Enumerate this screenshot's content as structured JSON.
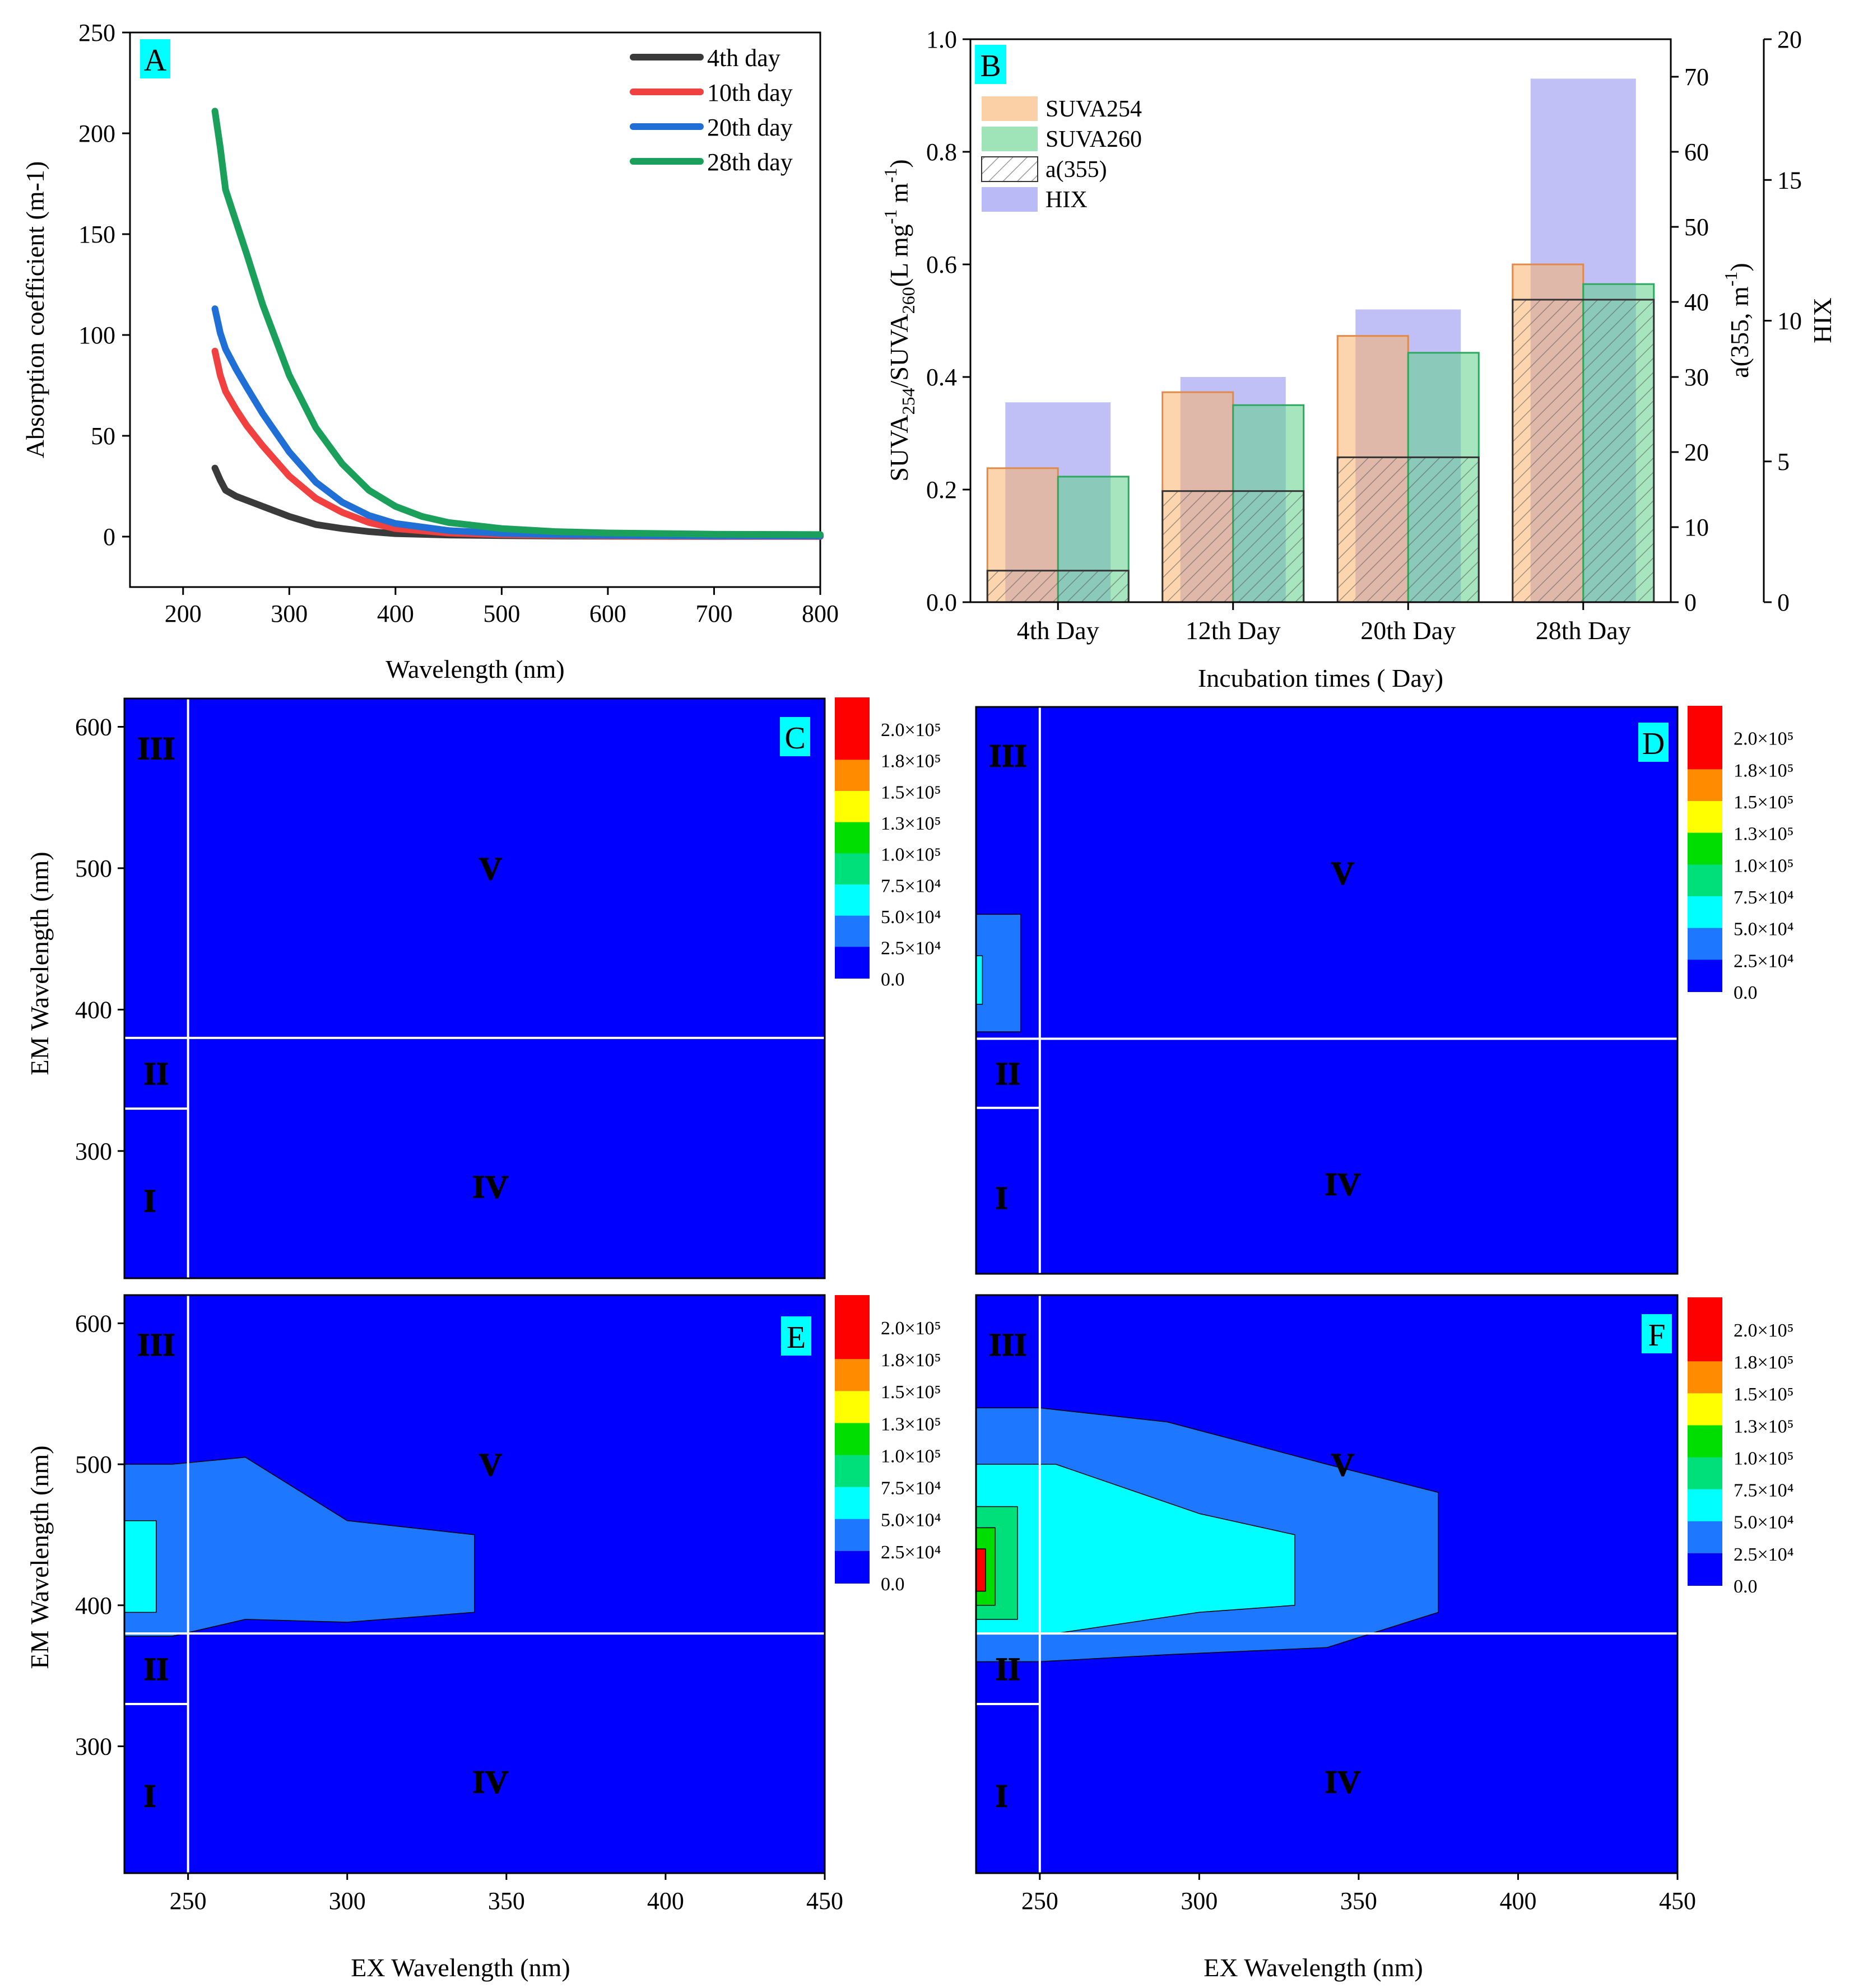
{
  "chart_data": [
    {
      "panel": "A",
      "type": "line",
      "xlabel": "Wavelength (nm)",
      "ylabel": "Absorption coefficient (m-1)",
      "xlim": [
        150,
        800
      ],
      "ylim": [
        -25,
        250
      ],
      "xticks": [
        200,
        300,
        400,
        500,
        600,
        700,
        800
      ],
      "yticks": [
        0,
        50,
        100,
        150,
        200,
        250
      ],
      "legend_position": "top-right",
      "series": [
        {
          "name": "4th day",
          "color": "#3a3a3a",
          "x": [
            230,
            235,
            240,
            250,
            260,
            275,
            300,
            325,
            350,
            375,
            400,
            450,
            500,
            550,
            600,
            700,
            800
          ],
          "y": [
            34,
            28,
            23,
            20,
            18,
            15,
            10,
            6,
            4,
            2.5,
            1.5,
            0.8,
            0.5,
            0.3,
            0.2,
            0.1,
            0.1
          ]
        },
        {
          "name": "10th day",
          "color": "#f04040",
          "x": [
            230,
            235,
            240,
            250,
            260,
            275,
            300,
            325,
            350,
            375,
            400,
            450,
            500,
            550,
            600,
            700,
            800
          ],
          "y": [
            92,
            80,
            72,
            63,
            55,
            45,
            30,
            19,
            12,
            7,
            4,
            1.8,
            1,
            0.6,
            0.4,
            0.2,
            0.1
          ]
        },
        {
          "name": "20th day",
          "color": "#1f6fd6",
          "x": [
            230,
            235,
            240,
            250,
            260,
            275,
            300,
            325,
            350,
            375,
            400,
            450,
            500,
            550,
            600,
            700,
            800
          ],
          "y": [
            113,
            101,
            93,
            83,
            74,
            61,
            42,
            27,
            17,
            10.5,
            6.5,
            3,
            1.6,
            1,
            0.7,
            0.4,
            0.3
          ]
        },
        {
          "name": "28th day",
          "color": "#1aa05a",
          "x": [
            230,
            235,
            240,
            250,
            260,
            275,
            300,
            325,
            350,
            375,
            400,
            425,
            450,
            500,
            550,
            600,
            700,
            800
          ],
          "y": [
            211,
            193,
            172,
            156,
            140,
            115,
            80,
            54,
            36,
            23,
            15,
            10,
            7,
            4,
            2.5,
            1.8,
            1.2,
            1
          ]
        }
      ]
    },
    {
      "panel": "B",
      "type": "bar",
      "xlabel": "Incubation times ( Day)",
      "ylabel_left": {
        "pre": "SUVA",
        "sub1": "254",
        "mid": "/SUVA",
        "sub2": "260",
        "post": "(L mg",
        "sup1": "-1",
        "mid2": " m",
        "sup2": "-1",
        "end": ")"
      },
      "ylabel_right1": {
        "pre": "a(355, m",
        "sup": "-1",
        "post": ")"
      },
      "ylabel_right2": "HIX",
      "categories": [
        "4th Day",
        "12th Day",
        "20th Day",
        "28th Day"
      ],
      "ylim": [
        0,
        1.0
      ],
      "yticks": [
        "0.0",
        "0.2",
        "0.4",
        "0.6",
        "0.8",
        "1.0"
      ],
      "ylim_right1": [
        0,
        75
      ],
      "yticks_right1": [
        0,
        10,
        20,
        30,
        40,
        50,
        60,
        70
      ],
      "ylim_right2": [
        0,
        20
      ],
      "yticks_right2": [
        0,
        5,
        10,
        15,
        20
      ],
      "legend_position": "top-left",
      "series": [
        {
          "name": "SUVA254",
          "axis": "left",
          "color": "#f9b06b",
          "values": [
            0.238,
            0.373,
            0.473,
            0.6
          ]
        },
        {
          "name": "SUVA260",
          "axis": "left",
          "color": "#5fd08a",
          "values": [
            0.223,
            0.35,
            0.443,
            0.565
          ]
        },
        {
          "name": "a(355)",
          "axis": "right1",
          "color": "#888888",
          "pattern": "hatch",
          "values": [
            4.2,
            14.8,
            19.3,
            40.3
          ]
        },
        {
          "name": "HIX",
          "axis": "right2",
          "color": "#8c8cf0",
          "values": [
            7.1,
            8,
            10.4,
            18.6
          ]
        }
      ]
    },
    {
      "panel": "C",
      "type": "heatmap",
      "xlabel": "",
      "ylabel": "EM Wavelength (nm)",
      "xlim": [
        230,
        450
      ],
      "ylim": [
        210,
        620
      ],
      "yticks": [
        300,
        400,
        500,
        600
      ],
      "colorbar": [
        "2.0×10⁵",
        "1.8×10⁵",
        "1.5×10⁵",
        "1.3×10⁵",
        "1.0×10⁵",
        "7.5×10⁴",
        "5.0×10⁴",
        "2.5×10⁴",
        "0.0"
      ],
      "regions": [
        "I",
        "II",
        "III",
        "IV",
        "V"
      ]
    },
    {
      "panel": "D",
      "type": "heatmap",
      "xlabel": "",
      "ylabel": "",
      "xlim": [
        230,
        450
      ],
      "ylim": [
        210,
        620
      ],
      "colorbar": [
        "2.0×10⁵",
        "1.8×10⁵",
        "1.5×10⁵",
        "1.3×10⁵",
        "1.0×10⁵",
        "7.5×10⁴",
        "5.0×10⁴",
        "2.5×10⁴",
        "0.0"
      ],
      "regions": [
        "I",
        "II",
        "III",
        "IV",
        "V"
      ]
    },
    {
      "panel": "E",
      "type": "heatmap",
      "xlabel": "EX Wavelength (nm)",
      "ylabel": "EM Wavelength (nm)",
      "xlim": [
        230,
        450
      ],
      "ylim": [
        210,
        620
      ],
      "xticks": [
        250,
        300,
        350,
        400,
        450
      ],
      "yticks": [
        300,
        400,
        500,
        600
      ],
      "colorbar": [
        "2.0×10⁵",
        "1.8×10⁵",
        "1.5×10⁵",
        "1.3×10⁵",
        "1.0×10⁵",
        "7.5×10⁴",
        "5.0×10⁴",
        "2.5×10⁴",
        "0.0"
      ],
      "regions": [
        "I",
        "II",
        "III",
        "IV",
        "V"
      ]
    },
    {
      "panel": "F",
      "type": "heatmap",
      "xlabel": "EX Wavelength (nm)",
      "ylabel": "",
      "xlim": [
        230,
        450
      ],
      "ylim": [
        210,
        620
      ],
      "xticks": [
        250,
        300,
        350,
        400,
        450
      ],
      "colorbar": [
        "2.0×10⁵",
        "1.8×10⁵",
        "1.5×10⁵",
        "1.3×10⁵",
        "1.0×10⁵",
        "7.5×10⁴",
        "5.0×10⁴",
        "2.5×10⁴",
        "0.0"
      ],
      "regions": [
        "I",
        "II",
        "III",
        "IV",
        "V"
      ]
    }
  ],
  "colors": {
    "eem_background": "#0000ff",
    "eem_levels": [
      "#0000ff",
      "#1e78ff",
      "#00ffff",
      "#00e07a",
      "#00dd00",
      "#ffff00",
      "#ff8c00",
      "#ff0000"
    ],
    "region_label": "#ffff00",
    "panel_badge": "#00ffff"
  }
}
